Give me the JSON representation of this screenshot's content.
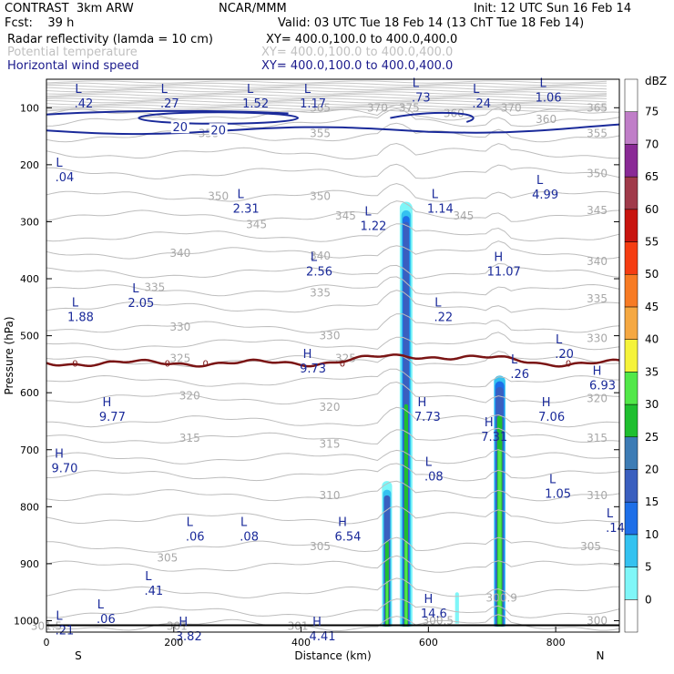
{
  "header": {
    "model": "CONTRAST  3km ARW",
    "org": "NCAR/MMM",
    "init": "Init: 12 UTC Sun 16 Feb 14",
    "fcst": "Fcst:    39 h",
    "valid": "Valid: 03 UTC Tue 18 Feb 14 (13 ChT Tue 18 Feb 14)",
    "field1_name": "Radar reflectivity (lamda = 10 cm)",
    "field1_xy": "XY= 400.0,100.0 to 400.0,400.0",
    "field2_name": "Potential temperature",
    "field2_xy": "XY= 400.0,100.0 to 400.0,400.0",
    "field3_name": "Horizontal wind speed",
    "field3_xy": "XY= 400.0,100.0 to 400.0,400.0"
  },
  "chart_data": {
    "type": "cross-section",
    "xlabel": "Distance (km)",
    "ylabel": "Pressure (hPa)",
    "xlim": [
      0,
      900
    ],
    "ylim": [
      1020,
      50
    ],
    "xticks": [
      0,
      200,
      400,
      600,
      800
    ],
    "yticks": [
      100,
      200,
      300,
      400,
      500,
      600,
      700,
      800,
      900,
      1000
    ],
    "xleft_label": "S",
    "xright_label": "N",
    "colorbar": {
      "unit": "dBZ",
      "levels": [
        0,
        5,
        10,
        15,
        20,
        25,
        30,
        35,
        40,
        45,
        50,
        55,
        60,
        65,
        70,
        75
      ],
      "colors": [
        "#ffffff",
        "#7ff6f8",
        "#34c2f0",
        "#1e6fe8",
        "#3a5fbf",
        "#3d7cb5",
        "#1fbf2f",
        "#52e849",
        "#f5f33a",
        "#f5a842",
        "#f77b24",
        "#f53d12",
        "#c8140f",
        "#a03a4a",
        "#8a2a96",
        "#c07ec8",
        "#ffffff"
      ]
    },
    "theta_labels": [
      {
        "x": 0,
        "p": 1010,
        "t": "301.5"
      },
      {
        "x": 205,
        "p": 1010,
        "t": "301"
      },
      {
        "x": 395,
        "p": 1010,
        "t": "301"
      },
      {
        "x": 615,
        "p": 1000,
        "t": "300.5"
      },
      {
        "x": 715,
        "p": 960,
        "t": "300.9"
      },
      {
        "x": 865,
        "p": 1000,
        "t": "300"
      },
      {
        "x": 190,
        "p": 890,
        "t": "305"
      },
      {
        "x": 430,
        "p": 870,
        "t": "305"
      },
      {
        "x": 855,
        "p": 870,
        "t": "305"
      },
      {
        "x": 445,
        "p": 780,
        "t": "310"
      },
      {
        "x": 865,
        "p": 780,
        "t": "310"
      },
      {
        "x": 225,
        "p": 680,
        "t": "315"
      },
      {
        "x": 445,
        "p": 690,
        "t": "315"
      },
      {
        "x": 865,
        "p": 680,
        "t": "315"
      },
      {
        "x": 225,
        "p": 605,
        "t": "320"
      },
      {
        "x": 445,
        "p": 625,
        "t": "320"
      },
      {
        "x": 865,
        "p": 610,
        "t": "320"
      },
      {
        "x": 210,
        "p": 540,
        "t": "325"
      },
      {
        "x": 470,
        "p": 540,
        "t": "325"
      },
      {
        "x": 210,
        "p": 485,
        "t": "330"
      },
      {
        "x": 445,
        "p": 500,
        "t": "330"
      },
      {
        "x": 865,
        "p": 505,
        "t": "330"
      },
      {
        "x": 170,
        "p": 415,
        "t": "335"
      },
      {
        "x": 430,
        "p": 425,
        "t": "335"
      },
      {
        "x": 865,
        "p": 435,
        "t": "335"
      },
      {
        "x": 210,
        "p": 355,
        "t": "340"
      },
      {
        "x": 430,
        "p": 360,
        "t": "340"
      },
      {
        "x": 865,
        "p": 370,
        "t": "340"
      },
      {
        "x": 330,
        "p": 305,
        "t": "345"
      },
      {
        "x": 470,
        "p": 290,
        "t": "345"
      },
      {
        "x": 655,
        "p": 290,
        "t": "345"
      },
      {
        "x": 865,
        "p": 280,
        "t": "345"
      },
      {
        "x": 270,
        "p": 255,
        "t": "350"
      },
      {
        "x": 430,
        "p": 255,
        "t": "350"
      },
      {
        "x": 865,
        "p": 215,
        "t": "350"
      },
      {
        "x": 255,
        "p": 145,
        "t": "355"
      },
      {
        "x": 430,
        "p": 145,
        "t": "355"
      },
      {
        "x": 865,
        "p": 145,
        "t": "355"
      },
      {
        "x": 785,
        "p": 120,
        "t": "360"
      },
      {
        "x": 430,
        "p": 100,
        "t": "365"
      },
      {
        "x": 865,
        "p": 100,
        "t": "365"
      },
      {
        "x": 520,
        "p": 100,
        "t": "370"
      },
      {
        "x": 730,
        "p": 100,
        "t": "370"
      },
      {
        "x": 570,
        "p": 100,
        "t": "375"
      },
      {
        "x": 640,
        "p": 110,
        "t": "360"
      }
    ],
    "wind_contours": [
      {
        "label": "20",
        "label_x": 210,
        "label_p": 135
      },
      {
        "label": "20",
        "label_x": 270,
        "label_p": 140
      }
    ],
    "freezing_level_label": "0",
    "extrema": [
      {
        "type": "L",
        "value": ".42",
        "x": 50,
        "p": 80
      },
      {
        "type": "L",
        "value": ".27",
        "x": 185,
        "p": 80
      },
      {
        "type": "L",
        "value": "1.52",
        "x": 320,
        "p": 80
      },
      {
        "type": "L",
        "value": "1.17",
        "x": 410,
        "p": 80
      },
      {
        "type": "L",
        "value": ".73",
        "x": 580,
        "p": 70
      },
      {
        "type": "L",
        "value": ".24",
        "x": 675,
        "p": 80
      },
      {
        "type": "L",
        "value": "1.06",
        "x": 780,
        "p": 70
      },
      {
        "type": "L",
        "value": ".04",
        "x": 20,
        "p": 210
      },
      {
        "type": "L",
        "value": "2.31",
        "x": 305,
        "p": 265
      },
      {
        "type": "L",
        "value": "1.22",
        "x": 505,
        "p": 295
      },
      {
        "type": "L",
        "value": "1.14",
        "x": 610,
        "p": 265
      },
      {
        "type": "L",
        "value": "4.99",
        "x": 775,
        "p": 240
      },
      {
        "type": "L",
        "value": "2.56",
        "x": 420,
        "p": 375
      },
      {
        "type": "H",
        "value": "11.07",
        "x": 710,
        "p": 375
      },
      {
        "type": "L",
        "value": "2.05",
        "x": 140,
        "p": 430
      },
      {
        "type": "L",
        "value": "1.88",
        "x": 45,
        "p": 455
      },
      {
        "type": "L",
        "value": ".22",
        "x": 615,
        "p": 455
      },
      {
        "type": "L",
        "value": ".20",
        "x": 805,
        "p": 520
      },
      {
        "type": "H",
        "value": "9.73",
        "x": 410,
        "p": 545
      },
      {
        "type": "L",
        "value": ".26",
        "x": 735,
        "p": 555
      },
      {
        "type": "H",
        "value": "6.93",
        "x": 865,
        "p": 575
      },
      {
        "type": "H",
        "value": "9.77",
        "x": 95,
        "p": 630
      },
      {
        "type": "H",
        "value": "7.73",
        "x": 590,
        "p": 630
      },
      {
        "type": "H",
        "value": "7.06",
        "x": 785,
        "p": 630
      },
      {
        "type": "H",
        "value": "7.31",
        "x": 695,
        "p": 665
      },
      {
        "type": "H",
        "value": "9.70",
        "x": 20,
        "p": 720
      },
      {
        "type": "L",
        "value": ".08",
        "x": 600,
        "p": 735
      },
      {
        "type": "L",
        "value": "1.05",
        "x": 795,
        "p": 765
      },
      {
        "type": "L",
        "value": ".14",
        "x": 885,
        "p": 825
      },
      {
        "type": "L",
        "value": ".06",
        "x": 225,
        "p": 840
      },
      {
        "type": "L",
        "value": ".08",
        "x": 310,
        "p": 840
      },
      {
        "type": "H",
        "value": "6.54",
        "x": 465,
        "p": 840
      },
      {
        "type": "L",
        "value": ".41",
        "x": 160,
        "p": 935
      },
      {
        "type": "H",
        "value": "14.6",
        "x": 600,
        "p": 975
      },
      {
        "type": "L",
        "value": ".06",
        "x": 85,
        "p": 985
      },
      {
        "type": "L",
        "value": ".21",
        "x": 20,
        "p": 1005
      },
      {
        "type": "H",
        "value": "3.82",
        "x": 215,
        "p": 1015
      },
      {
        "type": "H",
        "value": "4.41",
        "x": 425,
        "p": 1015
      }
    ]
  }
}
